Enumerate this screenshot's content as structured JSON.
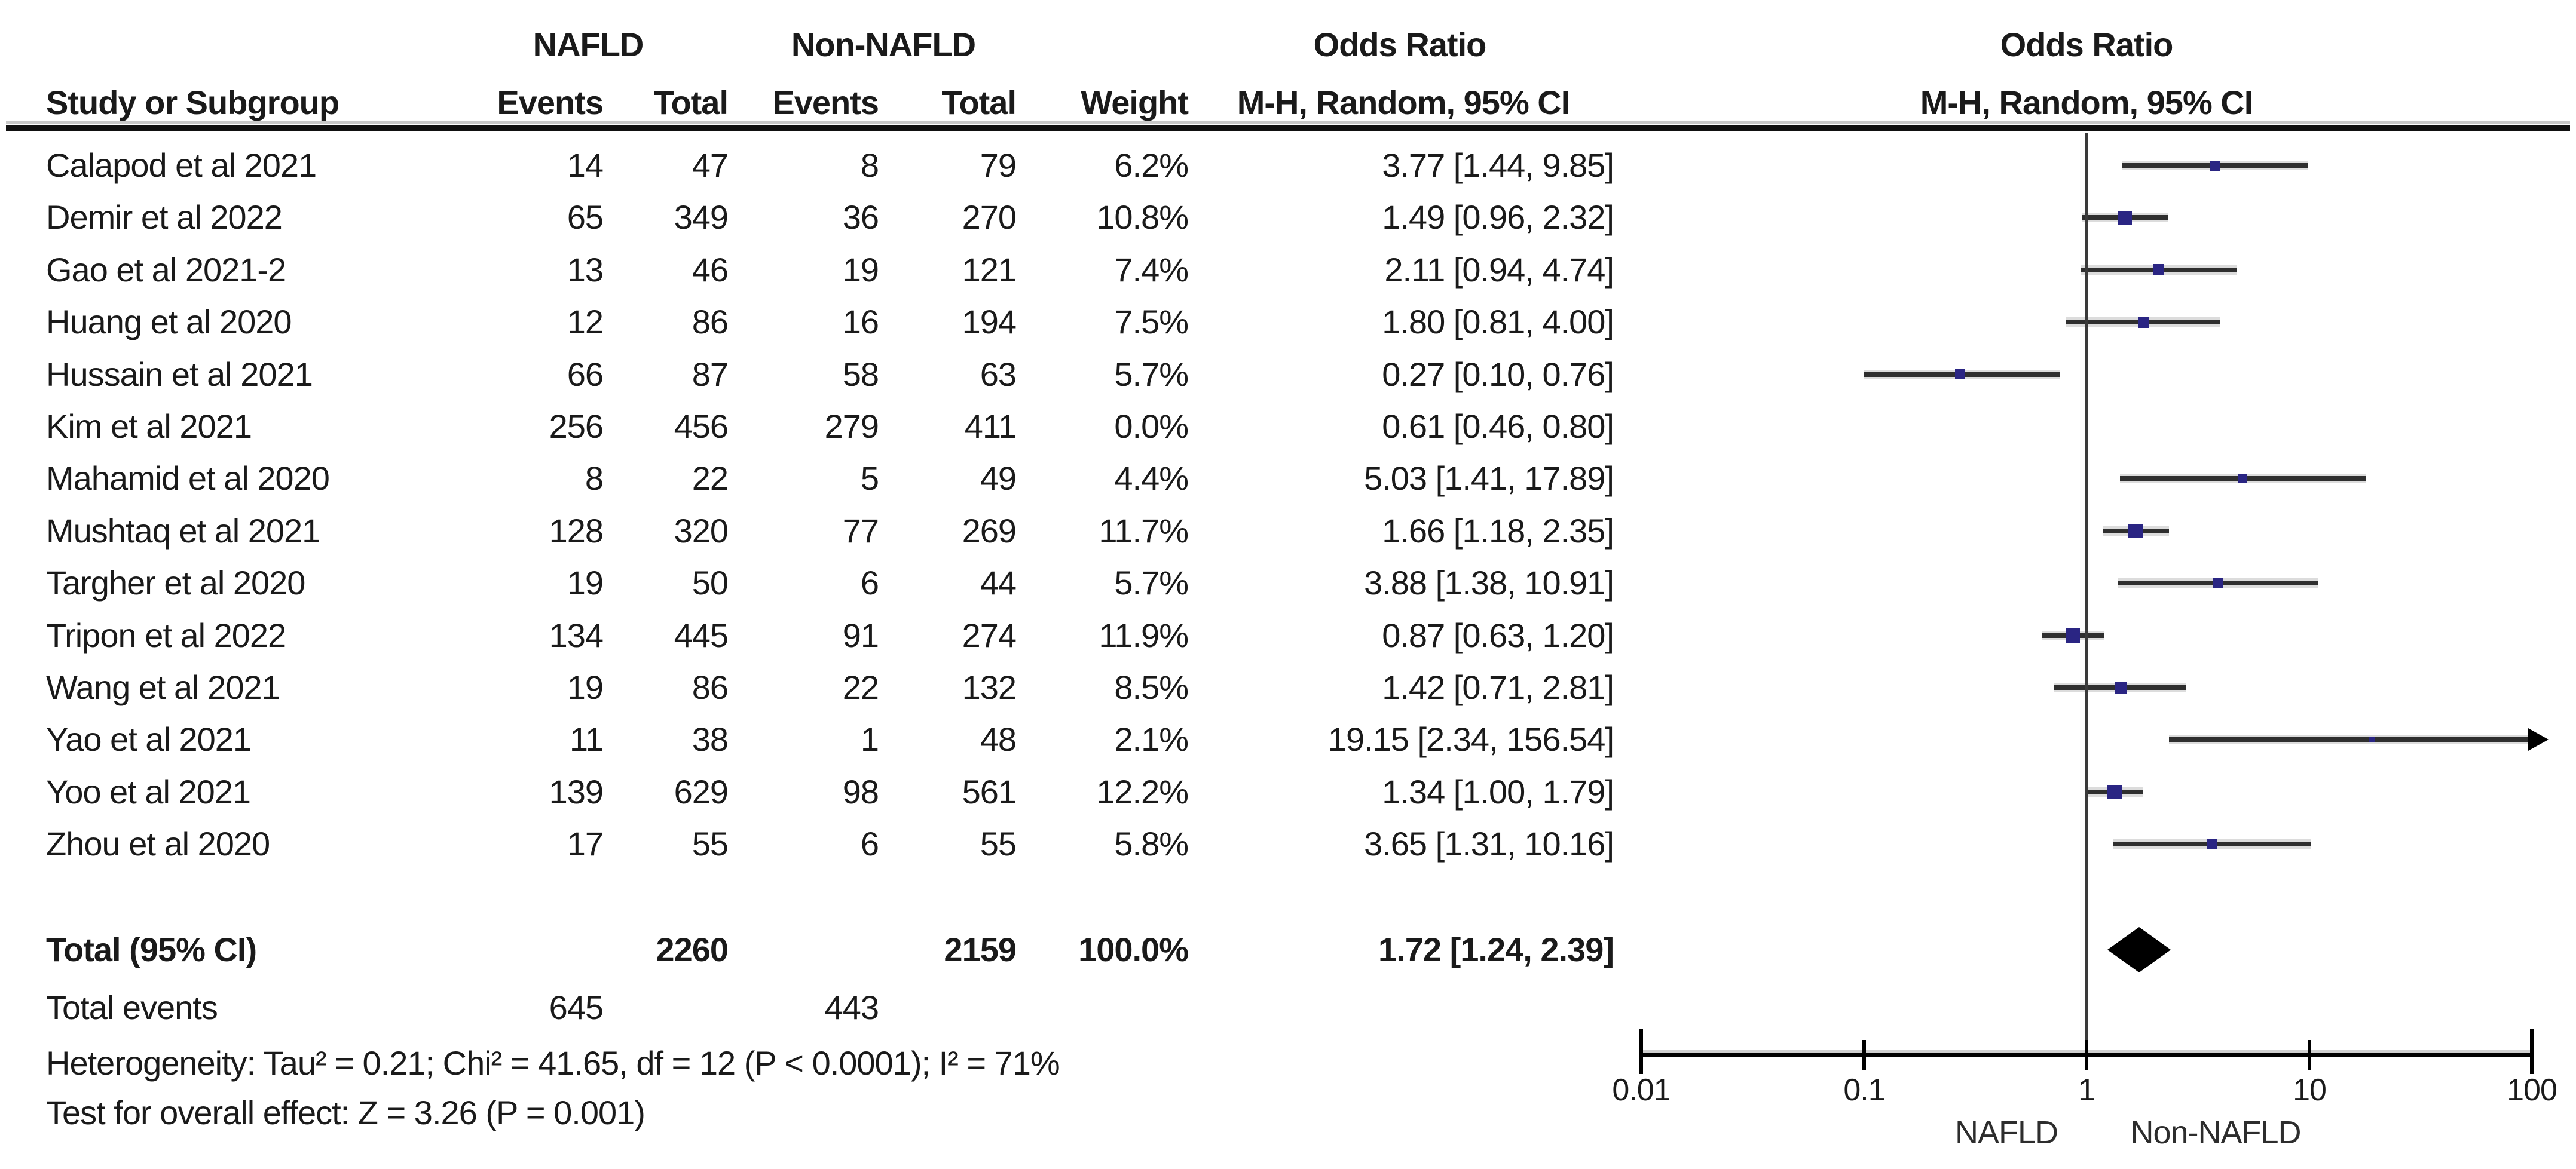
{
  "header": {
    "group1": "NAFLD",
    "group2": "Non-NAFLD",
    "odds_ratio_table": "Odds Ratio",
    "odds_ratio_plot": "Odds Ratio",
    "study": "Study or Subgroup",
    "events1": "Events",
    "total1": "Total",
    "events2": "Events",
    "total2": "Total",
    "weight": "Weight",
    "method_table": "M-H, Random, 95% CI",
    "method_plot": "M-H, Random, 95% CI"
  },
  "colors": {
    "square": "#2a2583",
    "ci_line": "#2f2f2f",
    "diamond": "#000000",
    "axis": "#000000",
    "text": "#1a1a1a"
  },
  "chart_data": {
    "type": "forest",
    "effect_measure": "Odds Ratio (M-H, Random, 95% CI)",
    "x_axis": {
      "scale": "log",
      "range": [
        0.01,
        100
      ],
      "ticks": [
        0.01,
        0.1,
        1,
        10,
        100
      ],
      "tick_labels": [
        "0.01",
        "0.1",
        "1",
        "10",
        "100"
      ],
      "left_label": "NAFLD",
      "right_label": "Non-NAFLD"
    },
    "studies": [
      {
        "name": "Calapod et al 2021",
        "nafld_events": "14",
        "nafld_total": "47",
        "non_events": "8",
        "non_total": "79",
        "weight_label": "6.2%",
        "or_ci_label": "3.77 [1.44, 9.85]",
        "or": 3.77,
        "ci_low": 1.44,
        "ci_high": 9.85,
        "weight": 6.2
      },
      {
        "name": "Demir et al 2022",
        "nafld_events": "65",
        "nafld_total": "349",
        "non_events": "36",
        "non_total": "270",
        "weight_label": "10.8%",
        "or_ci_label": "1.49 [0.96, 2.32]",
        "or": 1.49,
        "ci_low": 0.96,
        "ci_high": 2.32,
        "weight": 10.8
      },
      {
        "name": "Gao et al 2021-2",
        "nafld_events": "13",
        "nafld_total": "46",
        "non_events": "19",
        "non_total": "121",
        "weight_label": "7.4%",
        "or_ci_label": "2.11 [0.94, 4.74]",
        "or": 2.11,
        "ci_low": 0.94,
        "ci_high": 4.74,
        "weight": 7.4
      },
      {
        "name": "Huang et al 2020",
        "nafld_events": "12",
        "nafld_total": "86",
        "non_events": "16",
        "non_total": "194",
        "weight_label": "7.5%",
        "or_ci_label": "1.80 [0.81, 4.00]",
        "or": 1.8,
        "ci_low": 0.81,
        "ci_high": 4.0,
        "weight": 7.5
      },
      {
        "name": "Hussain et al 2021",
        "nafld_events": "66",
        "nafld_total": "87",
        "non_events": "58",
        "non_total": "63",
        "weight_label": "5.7%",
        "or_ci_label": "0.27 [0.10, 0.76]",
        "or": 0.27,
        "ci_low": 0.1,
        "ci_high": 0.76,
        "weight": 5.7
      },
      {
        "name": "Kim et al 2021",
        "nafld_events": "256",
        "nafld_total": "456",
        "non_events": "279",
        "non_total": "411",
        "weight_label": "0.0%",
        "or_ci_label": "0.61 [0.46, 0.80]",
        "or": 0.61,
        "ci_low": 0.46,
        "ci_high": 0.8,
        "weight": 0.0
      },
      {
        "name": "Mahamid et al 2020",
        "nafld_events": "8",
        "nafld_total": "22",
        "non_events": "5",
        "non_total": "49",
        "weight_label": "4.4%",
        "or_ci_label": "5.03 [1.41, 17.89]",
        "or": 5.03,
        "ci_low": 1.41,
        "ci_high": 17.89,
        "weight": 4.4
      },
      {
        "name": "Mushtaq et al 2021",
        "nafld_events": "128",
        "nafld_total": "320",
        "non_events": "77",
        "non_total": "269",
        "weight_label": "11.7%",
        "or_ci_label": "1.66 [1.18, 2.35]",
        "or": 1.66,
        "ci_low": 1.18,
        "ci_high": 2.35,
        "weight": 11.7
      },
      {
        "name": "Targher et al 2020",
        "nafld_events": "19",
        "nafld_total": "50",
        "non_events": "6",
        "non_total": "44",
        "weight_label": "5.7%",
        "or_ci_label": "3.88 [1.38, 10.91]",
        "or": 3.88,
        "ci_low": 1.38,
        "ci_high": 10.91,
        "weight": 5.7
      },
      {
        "name": "Tripon et al 2022",
        "nafld_events": "134",
        "nafld_total": "445",
        "non_events": "91",
        "non_total": "274",
        "weight_label": "11.9%",
        "or_ci_label": "0.87 [0.63, 1.20]",
        "or": 0.87,
        "ci_low": 0.63,
        "ci_high": 1.2,
        "weight": 11.9
      },
      {
        "name": "Wang et al 2021",
        "nafld_events": "19",
        "nafld_total": "86",
        "non_events": "22",
        "non_total": "132",
        "weight_label": "8.5%",
        "or_ci_label": "1.42 [0.71, 2.81]",
        "or": 1.42,
        "ci_low": 0.71,
        "ci_high": 2.81,
        "weight": 8.5
      },
      {
        "name": "Yao et al 2021",
        "nafld_events": "11",
        "nafld_total": "38",
        "non_events": "1",
        "non_total": "48",
        "weight_label": "2.1%",
        "or_ci_label": "19.15 [2.34, 156.54]",
        "or": 19.15,
        "ci_low": 2.34,
        "ci_high": 156.54,
        "weight": 2.1
      },
      {
        "name": "Yoo et al 2021",
        "nafld_events": "139",
        "nafld_total": "629",
        "non_events": "98",
        "non_total": "561",
        "weight_label": "12.2%",
        "or_ci_label": "1.34 [1.00, 1.79]",
        "or": 1.34,
        "ci_low": 1.0,
        "ci_high": 1.79,
        "weight": 12.2
      },
      {
        "name": "Zhou et al 2020",
        "nafld_events": "17",
        "nafld_total": "55",
        "non_events": "6",
        "non_total": "55",
        "weight_label": "5.8%",
        "or_ci_label": "3.65 [1.31, 10.16]",
        "or": 3.65,
        "ci_low": 1.31,
        "ci_high": 10.16,
        "weight": 5.8
      }
    ],
    "total": {
      "label": "Total (95% CI)",
      "nafld_total": "2260",
      "non_nafld_total": "2159",
      "weight_label": "100.0%",
      "or_ci_label": "1.72 [1.24, 2.39]",
      "or": 1.72,
      "ci_low": 1.24,
      "ci_high": 2.39
    },
    "total_events": {
      "label": "Total events",
      "nafld": "645",
      "non_nafld": "443"
    },
    "heterogeneity_label": "Heterogeneity: Tau² = 0.21; Chi² = 41.65, df = 12 (P < 0.0001); I² = 71%",
    "overall_effect_label": "Test for overall effect: Z = 3.26 (P = 0.001)"
  }
}
